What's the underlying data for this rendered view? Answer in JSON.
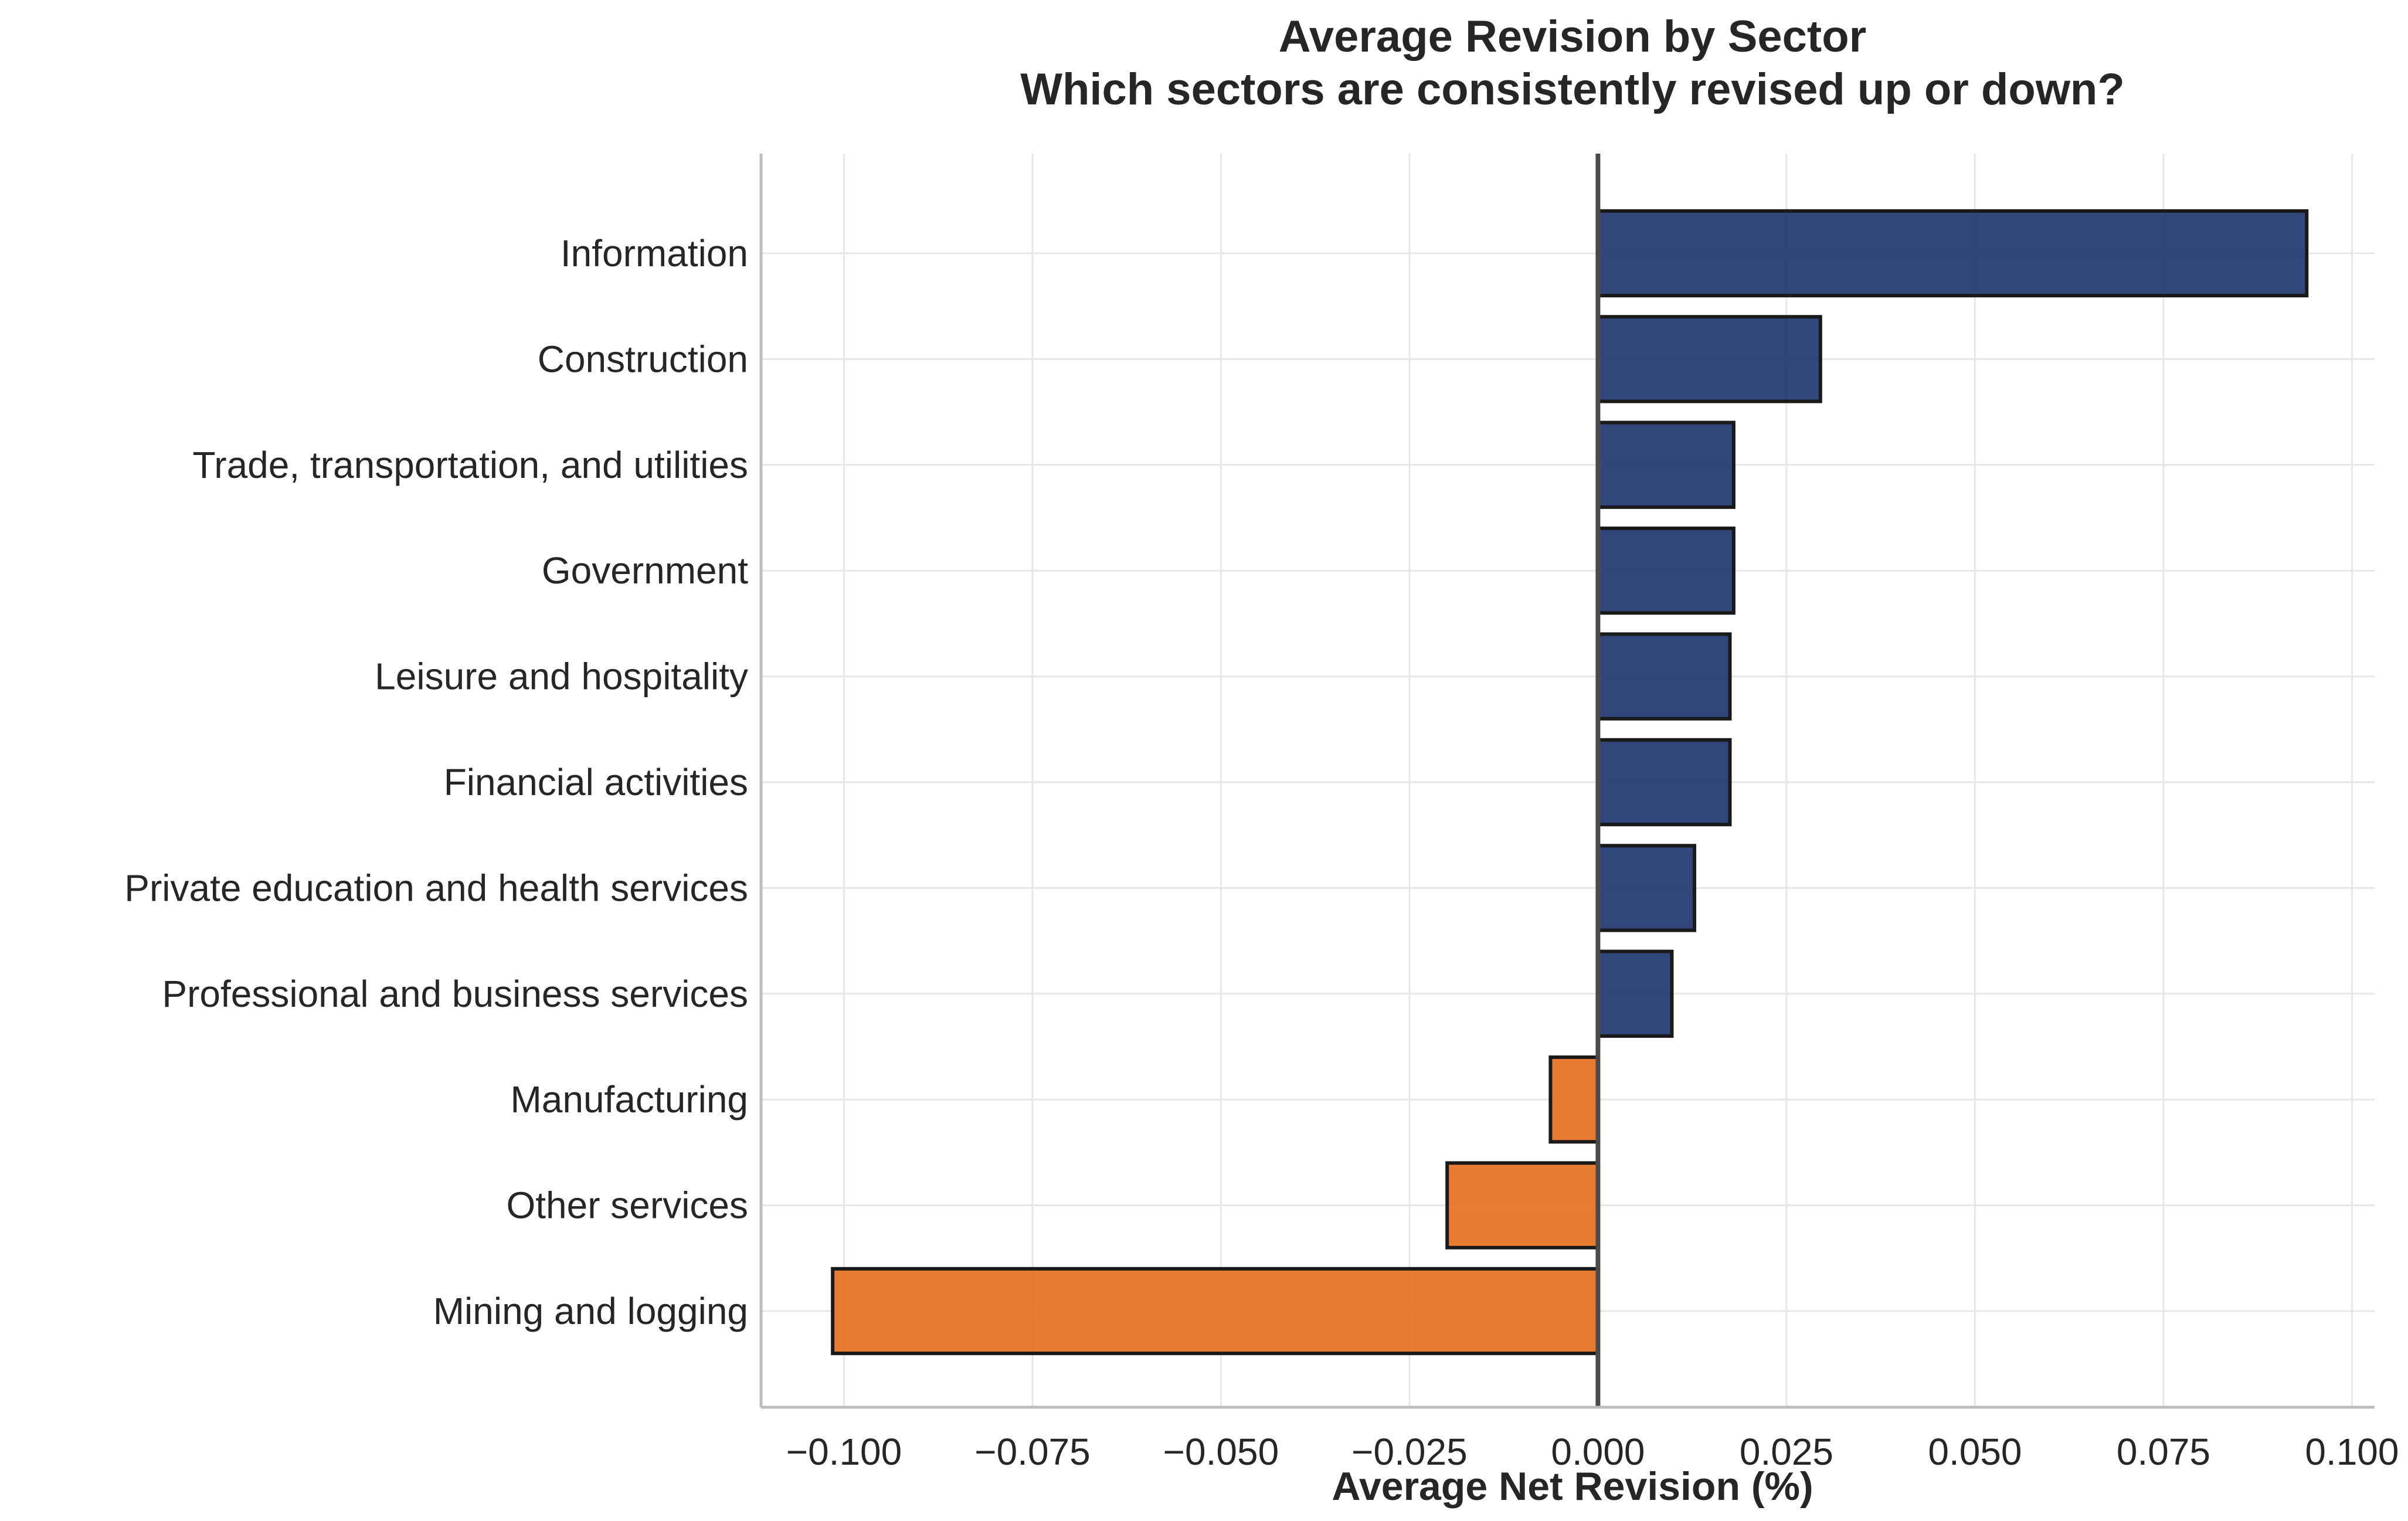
{
  "chart_data": {
    "type": "bar",
    "orientation": "horizontal",
    "title": "Average Revision by Sector",
    "subtitle": "Which sectors are consistently revised up or down?",
    "xlabel": "Average Net Revision (%)",
    "ylabel": "",
    "xlim": [
      -0.111,
      0.103
    ],
    "xticks": [
      -0.1,
      -0.075,
      -0.05,
      -0.025,
      0.0,
      0.025,
      0.05,
      0.075,
      0.1
    ],
    "xtick_labels": [
      "−0.100",
      "−0.075",
      "−0.050",
      "−0.025",
      "0.000",
      "0.025",
      "0.050",
      "0.075",
      "0.100"
    ],
    "grid": true,
    "legend": "none",
    "colors": {
      "positive": "#1f3670",
      "negative": "#e8711f",
      "edge": "#1a1a1a",
      "zero_line": "#4a4a4a"
    },
    "categories": [
      "Information",
      "Construction",
      "Trade, transportation, and utilities",
      "Government",
      "Leisure and hospitality",
      "Financial activities",
      "Private education and health services",
      "Professional and business services",
      "Manufacturing",
      "Other services",
      "Mining and logging"
    ],
    "values": [
      0.094,
      0.0295,
      0.018,
      0.018,
      0.0175,
      0.0175,
      0.0128,
      0.0098,
      -0.0063,
      -0.02,
      -0.1015
    ]
  }
}
